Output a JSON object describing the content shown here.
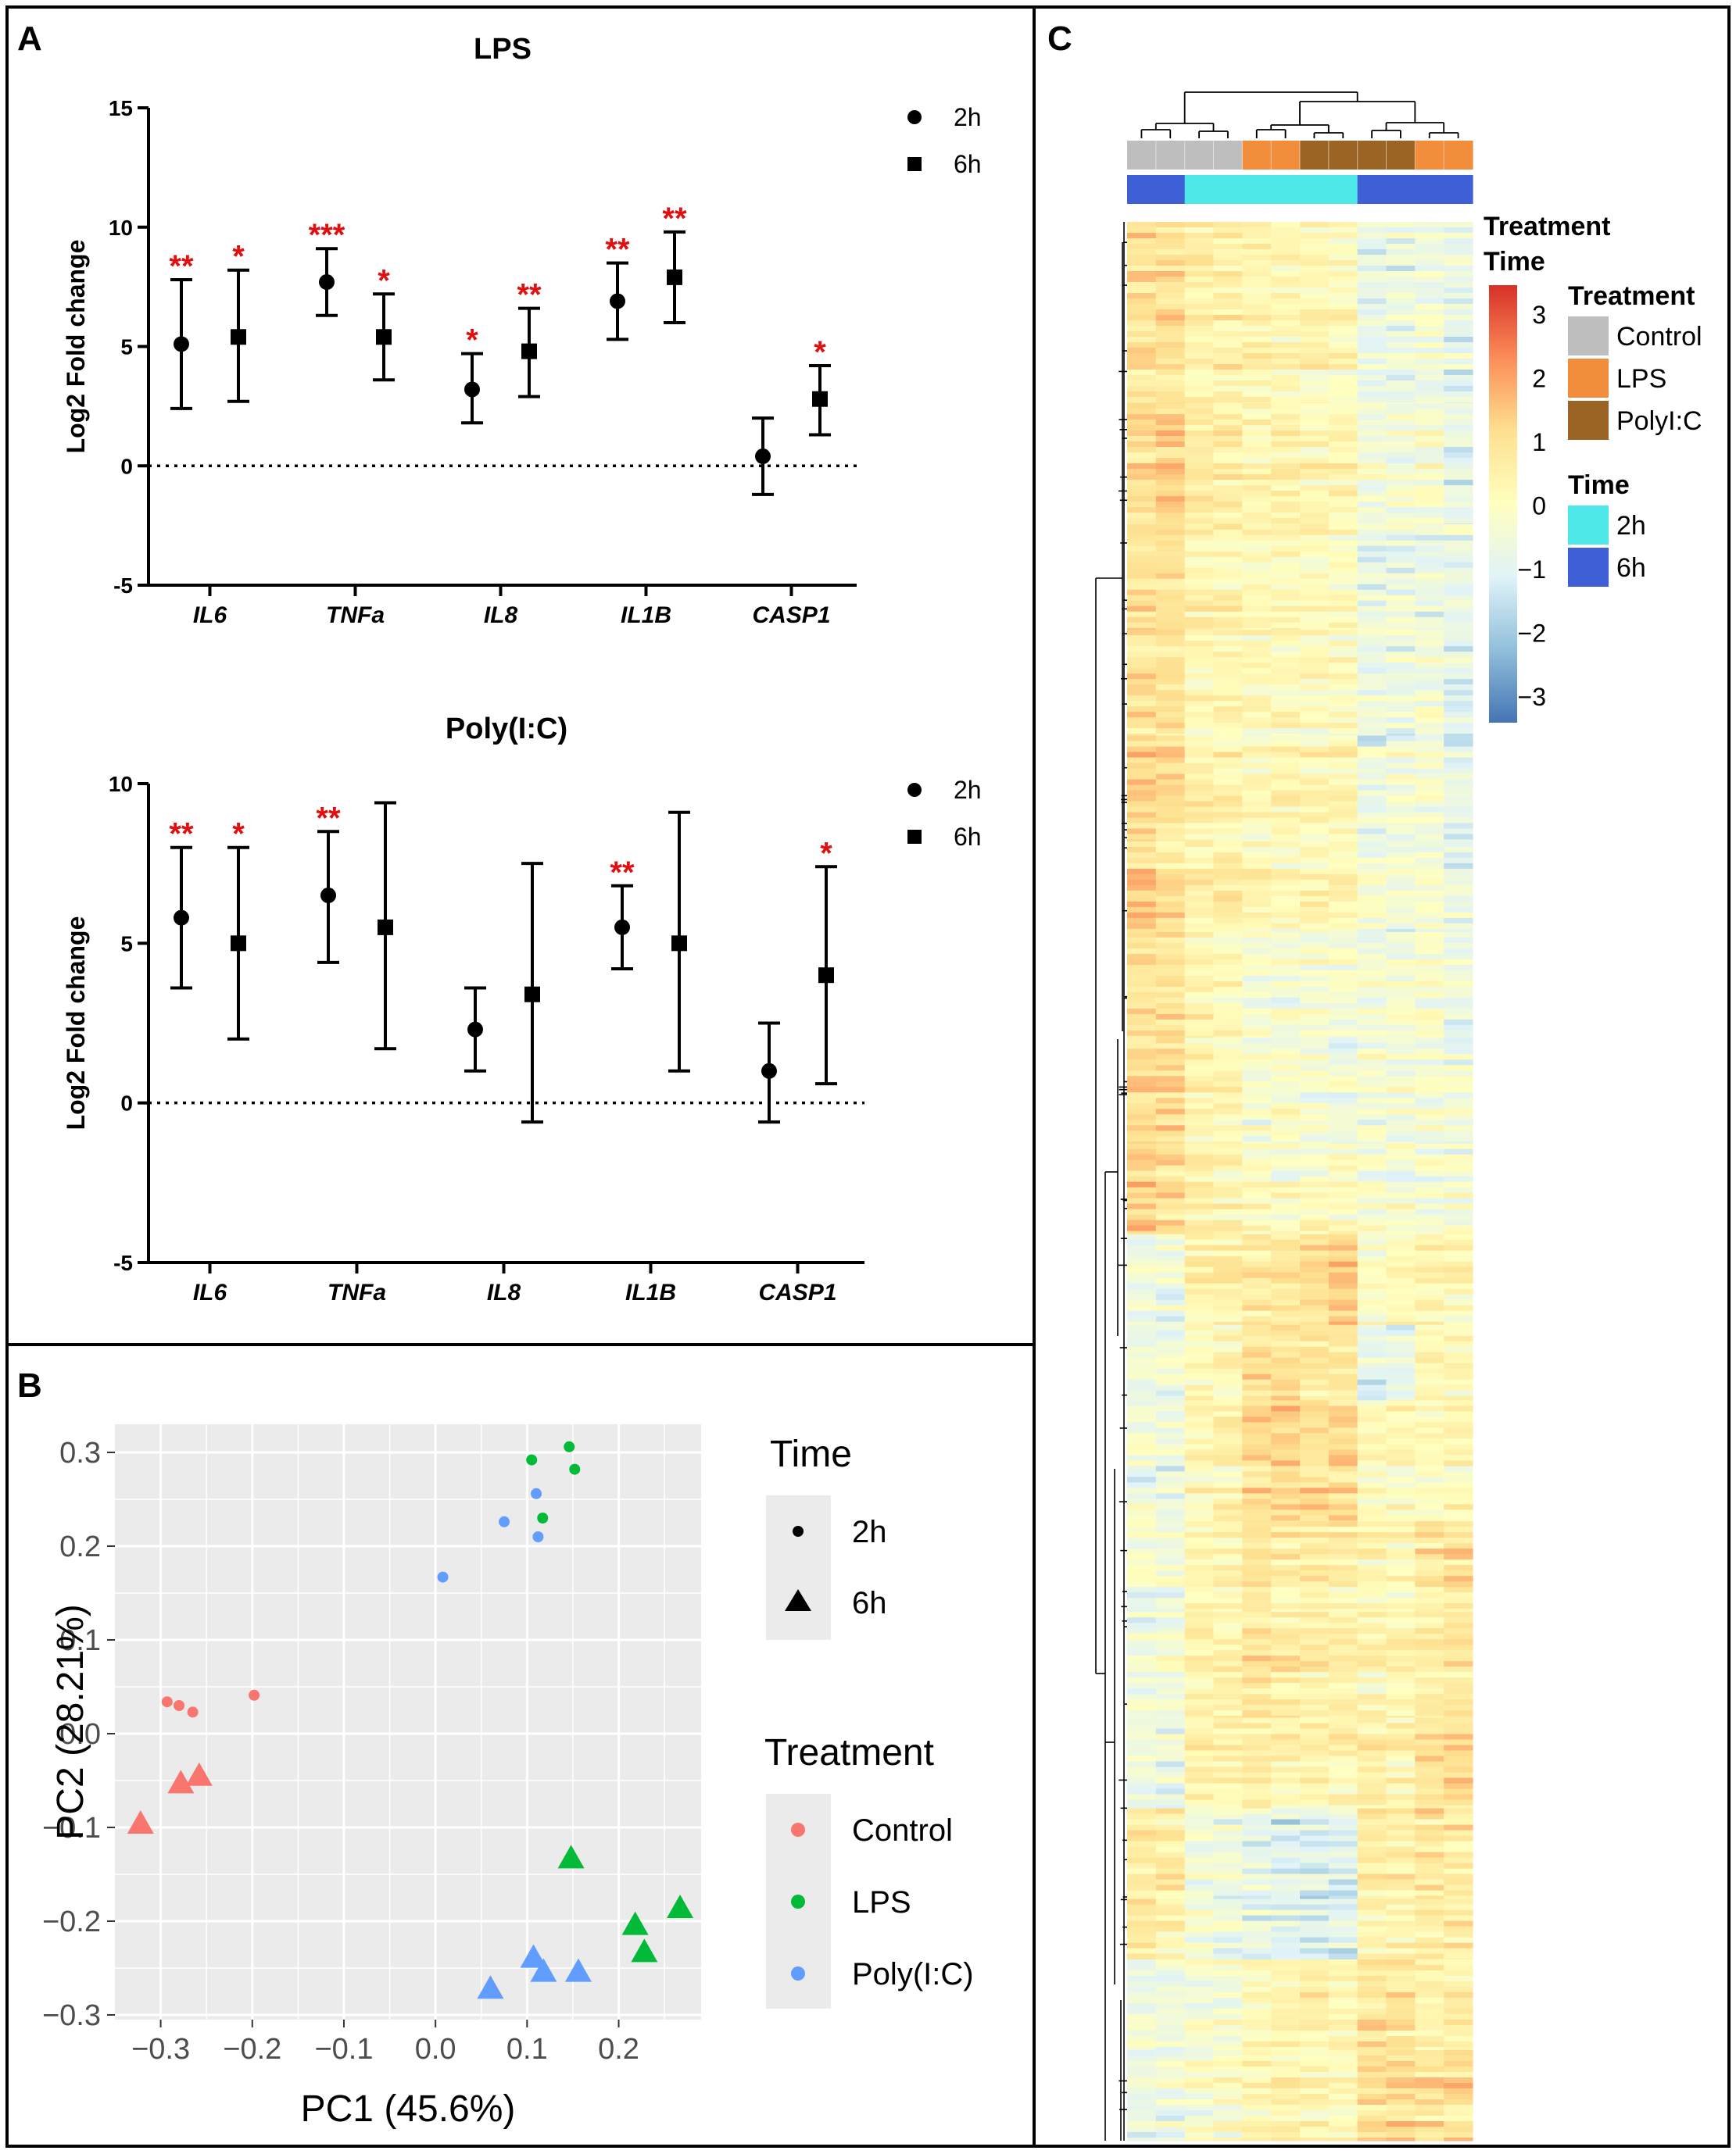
{
  "panel_labels": {
    "a": "A",
    "b": "B",
    "c": "C"
  },
  "chart_data": [
    {
      "id": "A-LPS",
      "type": "scatter",
      "subtype": "point-with-error-bars",
      "title": "LPS",
      "ylabel": "Log2 Fold change",
      "xlabel": "",
      "ylim": [
        -5,
        15
      ],
      "yticks": [
        -5,
        0,
        5,
        10,
        15
      ],
      "reference_line": 0,
      "categories": [
        "IL6",
        "TNFa",
        "IL8",
        "IL1B",
        "CASP1"
      ],
      "series": [
        {
          "name": "2h",
          "marker": "circle",
          "values": [
            5.1,
            7.7,
            3.2,
            6.9,
            0.4
          ],
          "err_low": [
            2.4,
            6.3,
            1.8,
            5.3,
            -1.2
          ],
          "err_high": [
            7.8,
            9.1,
            4.7,
            8.5,
            2.0
          ],
          "sig": [
            "**",
            "***",
            "*",
            "**",
            ""
          ]
        },
        {
          "name": "6h",
          "marker": "square",
          "values": [
            5.4,
            5.4,
            4.8,
            7.9,
            2.8
          ],
          "err_low": [
            2.7,
            3.6,
            2.9,
            6.0,
            1.3
          ],
          "err_high": [
            8.2,
            7.2,
            6.6,
            9.8,
            4.2
          ],
          "sig": [
            "*",
            "*",
            "**",
            "**",
            "*"
          ]
        }
      ],
      "legend_position": "top-right"
    },
    {
      "id": "A-PolyIC",
      "type": "scatter",
      "subtype": "point-with-error-bars",
      "title": "Poly(I:C)",
      "ylabel": "Log2 Fold change",
      "xlabel": "",
      "ylim": [
        -5,
        10
      ],
      "yticks": [
        -5,
        0,
        5,
        10
      ],
      "reference_line": 0,
      "categories": [
        "IL6",
        "TNFa",
        "IL8",
        "IL1B",
        "CASP1"
      ],
      "series": [
        {
          "name": "2h",
          "marker": "circle",
          "values": [
            5.8,
            6.5,
            2.3,
            5.5,
            1.0
          ],
          "err_low": [
            3.6,
            4.4,
            1.0,
            4.2,
            -0.6
          ],
          "err_high": [
            8.0,
            8.5,
            3.6,
            6.8,
            2.5
          ],
          "sig": [
            "**",
            "**",
            "",
            "**",
            ""
          ]
        },
        {
          "name": "6h",
          "marker": "square",
          "values": [
            5.0,
            5.5,
            3.4,
            5.0,
            4.0
          ],
          "err_low": [
            2.0,
            1.7,
            -0.6,
            1.0,
            0.6
          ],
          "err_high": [
            8.0,
            9.4,
            7.5,
            9.1,
            7.4
          ],
          "sig": [
            "*",
            "",
            "",
            "",
            "*"
          ]
        }
      ],
      "legend_position": "top-right"
    },
    {
      "id": "B-PCA",
      "type": "scatter",
      "xlabel": "PC1 (45.6%)",
      "ylabel": "PC2 (28.21%)",
      "xlim": [
        -0.35,
        0.29
      ],
      "ylim": [
        -0.305,
        0.33
      ],
      "xticks": [
        -0.3,
        -0.2,
        -0.1,
        0.0,
        0.1,
        0.2
      ],
      "yticks": [
        -0.3,
        -0.2,
        -0.1,
        0.0,
        0.1,
        0.2,
        0.3
      ],
      "grid": true,
      "points": [
        {
          "x": -0.293,
          "y": 0.034,
          "t": "Control",
          "time": "2h"
        },
        {
          "x": -0.28,
          "y": 0.03,
          "t": "Control",
          "time": "2h"
        },
        {
          "x": -0.265,
          "y": 0.023,
          "t": "Control",
          "time": "2h"
        },
        {
          "x": -0.198,
          "y": 0.041,
          "t": "Control",
          "time": "2h"
        },
        {
          "x": -0.322,
          "y": -0.095,
          "t": "Control",
          "time": "6h"
        },
        {
          "x": -0.278,
          "y": -0.052,
          "t": "Control",
          "time": "6h"
        },
        {
          "x": -0.258,
          "y": -0.044,
          "t": "Control",
          "time": "6h"
        },
        {
          "x": 0.105,
          "y": 0.292,
          "t": "LPS",
          "time": "2h"
        },
        {
          "x": 0.146,
          "y": 0.306,
          "t": "LPS",
          "time": "2h"
        },
        {
          "x": 0.152,
          "y": 0.282,
          "t": "LPS",
          "time": "2h"
        },
        {
          "x": 0.117,
          "y": 0.23,
          "t": "LPS",
          "time": "2h"
        },
        {
          "x": 0.148,
          "y": -0.132,
          "t": "LPS",
          "time": "6h"
        },
        {
          "x": 0.218,
          "y": -0.203,
          "t": "LPS",
          "time": "6h"
        },
        {
          "x": 0.267,
          "y": -0.185,
          "t": "LPS",
          "time": "6h"
        },
        {
          "x": 0.228,
          "y": -0.232,
          "t": "LPS",
          "time": "6h"
        },
        {
          "x": 0.11,
          "y": 0.256,
          "t": "Poly(I:C)",
          "time": "2h"
        },
        {
          "x": 0.075,
          "y": 0.226,
          "t": "Poly(I:C)",
          "time": "2h"
        },
        {
          "x": 0.112,
          "y": 0.21,
          "t": "Poly(I:C)",
          "time": "2h"
        },
        {
          "x": 0.008,
          "y": 0.167,
          "t": "Poly(I:C)",
          "time": "2h"
        },
        {
          "x": 0.06,
          "y": -0.271,
          "t": "Poly(I:C)",
          "time": "6h"
        },
        {
          "x": 0.107,
          "y": -0.238,
          "t": "Poly(I:C)",
          "time": "6h"
        },
        {
          "x": 0.118,
          "y": -0.253,
          "t": "Poly(I:C)",
          "time": "6h"
        },
        {
          "x": 0.156,
          "y": -0.253,
          "t": "Poly(I:C)",
          "time": "6h"
        }
      ],
      "legend": {
        "time_title": "Time",
        "time_items": [
          {
            "label": "2h",
            "shape": "circle"
          },
          {
            "label": "6h",
            "shape": "triangle"
          }
        ],
        "treatment_title": "Treatment",
        "treatment_items": [
          {
            "label": "Control",
            "color": "#F8766D"
          },
          {
            "label": "LPS",
            "color": "#00BA38"
          },
          {
            "label": "Poly(I:C)",
            "color": "#619CFF"
          }
        ]
      }
    },
    {
      "id": "C-heatmap",
      "type": "heatmap",
      "samples": 12,
      "annotations": {
        "treatment": [
          "Control",
          "Control",
          "Control",
          "Control",
          "LPS",
          "LPS",
          "PolyI:C",
          "PolyI:C",
          "PolyI:C",
          "PolyI:C",
          "LPS",
          "LPS"
        ],
        "time": [
          "6h",
          "6h",
          "2h",
          "2h",
          "2h",
          "2h",
          "2h",
          "2h",
          "6h",
          "6h",
          "6h",
          "6h"
        ]
      },
      "row_side_labels": [
        "Treatment",
        "Time"
      ],
      "colorbar": {
        "min": -3,
        "max": 3,
        "ticks": [
          "3",
          "2",
          "1",
          "0",
          "−1",
          "−2",
          "−3"
        ],
        "colors": [
          "#d73027",
          "#fc8d59",
          "#fee090",
          "#ffffbf",
          "#e0f3f8",
          "#91bfdb",
          "#4575b4"
        ]
      },
      "legend": {
        "treatment_title": "Treatment",
        "treatment_items": [
          {
            "label": "Control",
            "color": "#bebebe"
          },
          {
            "label": "LPS",
            "color": "#f28d3c"
          },
          {
            "label": "PolyI:C",
            "color": "#9c6424"
          }
        ],
        "time_title": "Time",
        "time_items": [
          {
            "label": "2h",
            "color": "#4ee8e8"
          },
          {
            "label": "6h",
            "color": "#3f5fd6"
          }
        ]
      },
      "blocks": [
        {
          "h": 12,
          "v": [
            0.9,
            0.8,
            0.4,
            0.4,
            0.3,
            0.2,
            0.2,
            0.1,
            -0.7,
            -0.6,
            -0.4,
            -0.7
          ]
        },
        {
          "h": 8,
          "v": [
            0.8,
            1.0,
            0.5,
            0.4,
            0.2,
            0.3,
            0.2,
            0.2,
            -0.5,
            -0.4,
            -0.3,
            -0.8
          ]
        },
        {
          "h": 7,
          "v": [
            1.0,
            0.8,
            0.4,
            0.3,
            0.3,
            0.2,
            0.1,
            0.1,
            -0.6,
            -0.5,
            -0.5,
            -0.6
          ]
        },
        {
          "h": 7,
          "v": [
            0.9,
            0.8,
            0.3,
            0.3,
            0.2,
            0.2,
            0.1,
            0.1,
            -0.5,
            -0.5,
            -0.3,
            -0.7
          ]
        },
        {
          "h": 7,
          "v": [
            1.1,
            0.9,
            0.4,
            0.3,
            0.1,
            0.2,
            0.2,
            0.2,
            -0.6,
            -0.4,
            -0.4,
            -0.8
          ]
        },
        {
          "h": 6,
          "v": [
            1.0,
            0.7,
            0.4,
            0.4,
            0.2,
            0.1,
            0.2,
            0.1,
            -0.4,
            -0.5,
            -0.3,
            -0.6
          ]
        },
        {
          "h": 7,
          "v": [
            0.9,
            0.8,
            0.3,
            0.2,
            -0.3,
            -0.4,
            -0.2,
            -0.3,
            -0.4,
            -0.3,
            -0.2,
            -0.6
          ]
        },
        {
          "h": 7,
          "v": [
            1.0,
            0.9,
            0.2,
            0.3,
            -0.3,
            -0.2,
            -0.3,
            -0.4,
            -0.3,
            -0.4,
            -0.4,
            -0.5
          ]
        },
        {
          "h": 6,
          "v": [
            1.1,
            0.8,
            0.4,
            0.3,
            -0.1,
            -0.2,
            0.0,
            -0.1,
            -0.2,
            -0.3,
            -0.3,
            -0.4
          ]
        },
        {
          "h": 6,
          "v": [
            -0.6,
            -0.5,
            0.3,
            0.3,
            0.5,
            0.6,
            1.0,
            1.1,
            0.0,
            0.1,
            0.2,
            0.2
          ]
        },
        {
          "h": 5,
          "v": [
            -0.5,
            -0.4,
            0.2,
            0.2,
            0.8,
            0.9,
            0.7,
            0.6,
            -0.8,
            -0.6,
            0.3,
            0.2
          ]
        },
        {
          "h": 8,
          "v": [
            -0.5,
            -0.5,
            0.2,
            0.3,
            1.0,
            1.1,
            0.9,
            0.9,
            0.1,
            0.1,
            0.0,
            0.2
          ]
        },
        {
          "h": 6,
          "v": [
            -0.4,
            -0.4,
            0.3,
            0.2,
            0.6,
            0.5,
            0.5,
            0.4,
            0.2,
            0.1,
            0.7,
            0.8
          ]
        },
        {
          "h": 7,
          "v": [
            -0.5,
            -0.4,
            0.3,
            0.3,
            0.7,
            0.6,
            0.4,
            0.5,
            0.2,
            0.3,
            0.5,
            0.6
          ]
        },
        {
          "h": 6,
          "v": [
            -0.5,
            -0.6,
            0.4,
            0.4,
            0.5,
            0.4,
            0.4,
            0.3,
            0.4,
            0.3,
            0.9,
            1.0
          ]
        },
        {
          "h": 6,
          "v": [
            0.6,
            0.5,
            -0.5,
            -0.6,
            -0.8,
            -0.9,
            -1.0,
            -1.0,
            0.4,
            0.4,
            0.7,
            0.6
          ]
        },
        {
          "h": 4,
          "v": [
            0.5,
            0.4,
            -0.4,
            -0.5,
            -0.7,
            -0.8,
            -0.9,
            -0.8,
            0.3,
            0.3,
            0.5,
            0.5
          ]
        },
        {
          "h": 6,
          "v": [
            -0.5,
            -0.4,
            -0.2,
            -0.2,
            0.3,
            0.4,
            0.5,
            0.4,
            0.8,
            0.7,
            0.5,
            0.4
          ]
        },
        {
          "h": 6,
          "v": [
            -0.6,
            -0.5,
            -0.3,
            -0.2,
            0.2,
            0.3,
            0.3,
            0.2,
            0.9,
            0.9,
            0.8,
            0.9
          ]
        }
      ]
    }
  ]
}
